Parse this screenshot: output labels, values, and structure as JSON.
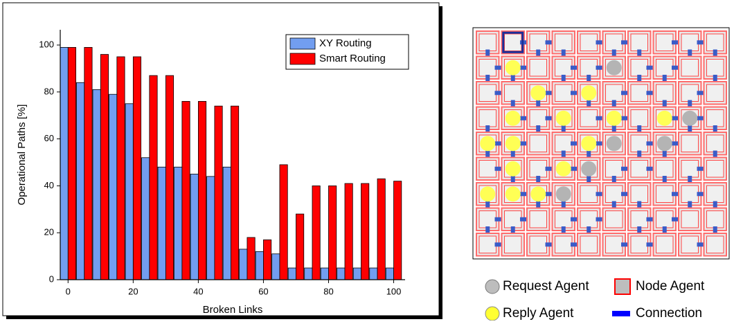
{
  "chart_data": {
    "type": "bar",
    "xlabel": "Broken Links",
    "ylabel": "Operational Paths [%]",
    "x": [
      0,
      5,
      10,
      15,
      20,
      25,
      30,
      35,
      40,
      45,
      50,
      55,
      60,
      65,
      70,
      75,
      80,
      85,
      90,
      95,
      100
    ],
    "series": [
      {
        "name": "XY Routing",
        "color": "#729ef0",
        "values": [
          99,
          84,
          81,
          79,
          75,
          52,
          48,
          48,
          45,
          44,
          48,
          13,
          12,
          11,
          5,
          5,
          5,
          5,
          5,
          5,
          5
        ]
      },
      {
        "name": "Smart Routing",
        "color": "#ff0000",
        "values": [
          99,
          99,
          96,
          95,
          95,
          87,
          87,
          76,
          76,
          74,
          74,
          18,
          17,
          49,
          28,
          40,
          40,
          41,
          41,
          43,
          42
        ]
      }
    ],
    "xlim": [
      -2.4,
      103.5
    ],
    "ylim": [
      0,
      106.5
    ],
    "xticks": [
      0,
      20,
      40,
      60,
      80,
      100
    ],
    "yticks": [
      0,
      20,
      40,
      60,
      80,
      100
    ],
    "legend": "upper right"
  },
  "legend_panel": {
    "items": [
      "Request Agent",
      "Node Agent",
      "Reply Agent",
      "Connection"
    ]
  }
}
